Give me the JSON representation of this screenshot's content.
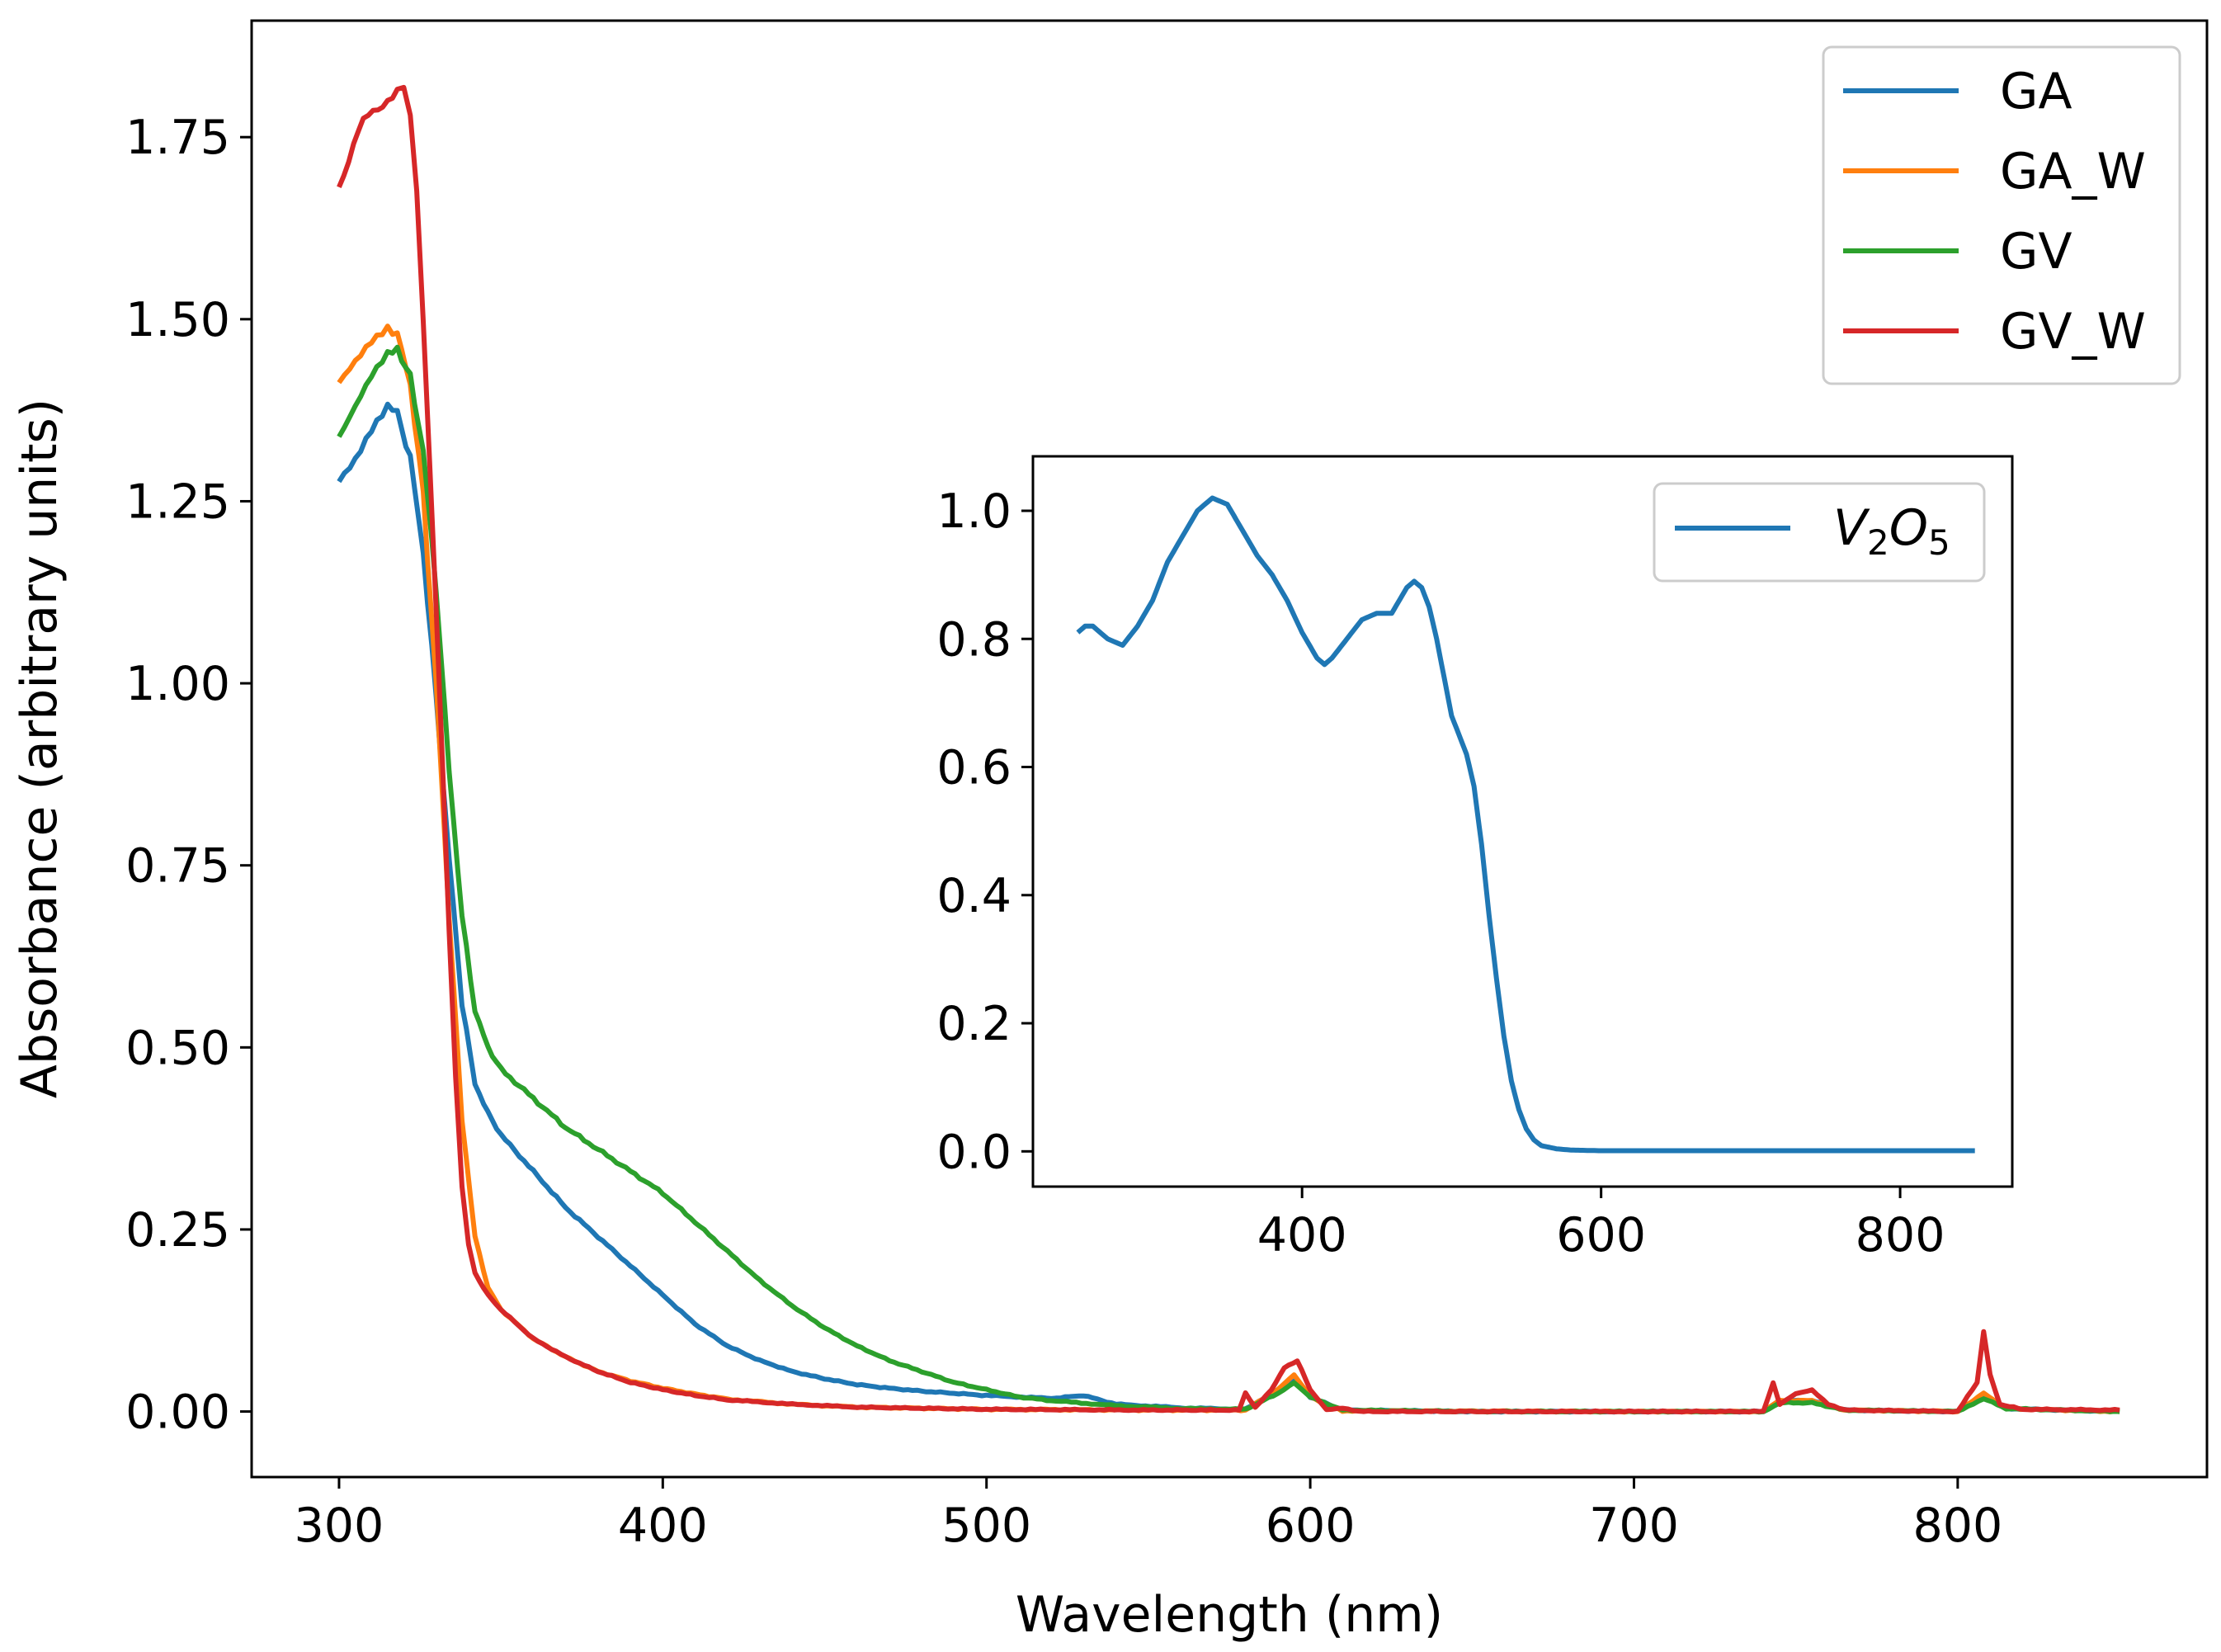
{
  "chart_data": [
    {
      "type": "line",
      "xlabel": "Wavelength (nm)",
      "ylabel": "Absorbance (arbitrary units)",
      "xlim": [
        273,
        877
      ],
      "ylim": [
        -0.09,
        1.91
      ],
      "xticks": [
        300,
        400,
        500,
        600,
        700,
        800
      ],
      "xtick_labels": [
        "300",
        "400",
        "500",
        "600",
        "700",
        "800"
      ],
      "yticks": [
        0,
        0.25,
        0.5,
        0.75,
        1.0,
        1.25,
        1.5,
        1.75
      ],
      "ytick_labels": [
        "0.00",
        "0.25",
        "0.50",
        "0.75",
        "1.00",
        "1.25",
        "1.50",
        "1.75"
      ],
      "legend_position": "top-right",
      "series": [
        {
          "name": "GA",
          "color": "#1f77b4",
          "points": [
            [
              300,
              1.28
            ],
            [
              305,
              1.31
            ],
            [
              310,
              1.35
            ],
            [
              315,
              1.38
            ],
            [
              318,
              1.37
            ],
            [
              322,
              1.31
            ],
            [
              326,
              1.18
            ],
            [
              330,
              0.98
            ],
            [
              334,
              0.76
            ],
            [
              338,
              0.56
            ],
            [
              342,
              0.45
            ],
            [
              346,
              0.41
            ],
            [
              350,
              0.38
            ],
            [
              360,
              0.33
            ],
            [
              370,
              0.28
            ],
            [
              380,
              0.24
            ],
            [
              390,
              0.2
            ],
            [
              400,
              0.16
            ],
            [
              410,
              0.12
            ],
            [
              420,
              0.09
            ],
            [
              430,
              0.07
            ],
            [
              440,
              0.055
            ],
            [
              450,
              0.045
            ],
            [
              460,
              0.037
            ],
            [
              470,
              0.032
            ],
            [
              480,
              0.028
            ],
            [
              490,
              0.025
            ],
            [
              500,
              0.022
            ],
            [
              520,
              0.018
            ],
            [
              530,
              0.022
            ],
            [
              540,
              0.01
            ],
            [
              560,
              0.005
            ],
            [
              580,
              0.003
            ],
            [
              590,
              0.03
            ],
            [
              595,
              0.045
            ],
            [
              600,
              0.02
            ],
            [
              610,
              0.002
            ],
            [
              650,
              0.0
            ],
            [
              700,
              0.0
            ],
            [
              740,
              0.0
            ],
            [
              745,
              0.015
            ],
            [
              755,
              0.015
            ],
            [
              765,
              0.002
            ],
            [
              800,
              0.0
            ],
            [
              808,
              0.02
            ],
            [
              815,
              0.004
            ],
            [
              850,
              0.0
            ]
          ]
        },
        {
          "name": "GA_W",
          "color": "#ff7f0e",
          "points": [
            [
              300,
              1.41
            ],
            [
              305,
              1.44
            ],
            [
              310,
              1.47
            ],
            [
              315,
              1.49
            ],
            [
              318,
              1.48
            ],
            [
              322,
              1.41
            ],
            [
              326,
              1.26
            ],
            [
              330,
              1.0
            ],
            [
              334,
              0.68
            ],
            [
              338,
              0.4
            ],
            [
              342,
              0.24
            ],
            [
              346,
              0.17
            ],
            [
              350,
              0.14
            ],
            [
              360,
              0.1
            ],
            [
              370,
              0.075
            ],
            [
              380,
              0.055
            ],
            [
              390,
              0.042
            ],
            [
              400,
              0.032
            ],
            [
              410,
              0.024
            ],
            [
              420,
              0.017
            ],
            [
              440,
              0.01
            ],
            [
              460,
              0.006
            ],
            [
              500,
              0.003
            ],
            [
              550,
              0.002
            ],
            [
              580,
              0.002
            ],
            [
              590,
              0.03
            ],
            [
              595,
              0.05
            ],
            [
              600,
              0.02
            ],
            [
              610,
              0.001
            ],
            [
              700,
              0.0
            ],
            [
              740,
              0.0
            ],
            [
              745,
              0.015
            ],
            [
              755,
              0.015
            ],
            [
              765,
              0.002
            ],
            [
              800,
              0.0
            ],
            [
              808,
              0.025
            ],
            [
              815,
              0.004
            ],
            [
              850,
              0.0
            ]
          ]
        },
        {
          "name": "GV",
          "color": "#2ca02c",
          "points": [
            [
              300,
              1.34
            ],
            [
              305,
              1.38
            ],
            [
              310,
              1.42
            ],
            [
              315,
              1.45
            ],
            [
              318,
              1.46
            ],
            [
              322,
              1.42
            ],
            [
              326,
              1.32
            ],
            [
              330,
              1.13
            ],
            [
              334,
              0.88
            ],
            [
              338,
              0.68
            ],
            [
              342,
              0.55
            ],
            [
              346,
              0.5
            ],
            [
              350,
              0.47
            ],
            [
              360,
              0.43
            ],
            [
              370,
              0.39
            ],
            [
              380,
              0.36
            ],
            [
              390,
              0.33
            ],
            [
              400,
              0.3
            ],
            [
              410,
              0.26
            ],
            [
              420,
              0.22
            ],
            [
              430,
              0.18
            ],
            [
              440,
              0.145
            ],
            [
              450,
              0.115
            ],
            [
              460,
              0.09
            ],
            [
              470,
              0.07
            ],
            [
              480,
              0.055
            ],
            [
              490,
              0.04
            ],
            [
              500,
              0.03
            ],
            [
              510,
              0.02
            ],
            [
              520,
              0.015
            ],
            [
              540,
              0.008
            ],
            [
              560,
              0.004
            ],
            [
              580,
              0.003
            ],
            [
              590,
              0.025
            ],
            [
              595,
              0.04
            ],
            [
              600,
              0.02
            ],
            [
              610,
              0.002
            ],
            [
              650,
              0.0
            ],
            [
              700,
              0.0
            ],
            [
              740,
              0.0
            ],
            [
              745,
              0.012
            ],
            [
              755,
              0.012
            ],
            [
              765,
              0.002
            ],
            [
              800,
              0.0
            ],
            [
              808,
              0.018
            ],
            [
              815,
              0.004
            ],
            [
              850,
              0.0
            ]
          ]
        },
        {
          "name": "GV_W",
          "color": "#d62728",
          "points": [
            [
              300,
              1.68
            ],
            [
              303,
              1.72
            ],
            [
              306,
              1.76
            ],
            [
              309,
              1.78
            ],
            [
              312,
              1.79
            ],
            [
              315,
              1.8
            ],
            [
              318,
              1.81
            ],
            [
              320,
              1.82
            ],
            [
              322,
              1.78
            ],
            [
              324,
              1.68
            ],
            [
              326,
              1.5
            ],
            [
              328,
              1.3
            ],
            [
              330,
              1.1
            ],
            [
              332,
              0.88
            ],
            [
              334,
              0.66
            ],
            [
              336,
              0.46
            ],
            [
              338,
              0.31
            ],
            [
              340,
              0.23
            ],
            [
              342,
              0.19
            ],
            [
              346,
              0.16
            ],
            [
              350,
              0.14
            ],
            [
              360,
              0.1
            ],
            [
              370,
              0.075
            ],
            [
              380,
              0.055
            ],
            [
              390,
              0.04
            ],
            [
              400,
              0.03
            ],
            [
              410,
              0.022
            ],
            [
              420,
              0.016
            ],
            [
              440,
              0.01
            ],
            [
              460,
              0.006
            ],
            [
              500,
              0.003
            ],
            [
              550,
              0.002
            ],
            [
              578,
              0.002
            ],
            [
              580,
              0.025
            ],
            [
              583,
              0.005
            ],
            [
              588,
              0.03
            ],
            [
              592,
              0.06
            ],
            [
              596,
              0.07
            ],
            [
              600,
              0.03
            ],
            [
              605,
              0.003
            ],
            [
              610,
              0.005
            ],
            [
              615,
              0.0
            ],
            [
              700,
              0.0
            ],
            [
              740,
              0.0
            ],
            [
              743,
              0.04
            ],
            [
              745,
              0.01
            ],
            [
              750,
              0.025
            ],
            [
              755,
              0.03
            ],
            [
              760,
              0.01
            ],
            [
              765,
              0.002
            ],
            [
              800,
              0.0
            ],
            [
              806,
              0.04
            ],
            [
              808,
              0.11
            ],
            [
              810,
              0.05
            ],
            [
              813,
              0.01
            ],
            [
              820,
              0.003
            ],
            [
              850,
              0.002
            ]
          ]
        }
      ]
    },
    {
      "type": "line",
      "inset": true,
      "xlabel": "",
      "ylabel": "",
      "xlim": [
        220,
        875
      ],
      "ylim": [
        -0.055,
        1.085
      ],
      "xticks": [
        400,
        600,
        800
      ],
      "xtick_labels": [
        "400",
        "600",
        "800"
      ],
      "yticks": [
        0,
        0.2,
        0.4,
        0.6,
        0.8,
        1.0
      ],
      "ytick_labels": [
        "0.0",
        "0.2",
        "0.4",
        "0.6",
        "0.8",
        "1.0"
      ],
      "legend_position": "top-right",
      "series": [
        {
          "name": "V₂O₅",
          "name_base": "V",
          "name_sub1": "2",
          "name_mid": "O",
          "name_sub2": "5",
          "color": "#1f77b4",
          "points": [
            [
              250,
              0.81
            ],
            [
              255,
              0.82
            ],
            [
              260,
              0.82
            ],
            [
              270,
              0.8
            ],
            [
              280,
              0.79
            ],
            [
              290,
              0.82
            ],
            [
              300,
              0.86
            ],
            [
              310,
              0.92
            ],
            [
              320,
              0.96
            ],
            [
              330,
              1.0
            ],
            [
              340,
              1.02
            ],
            [
              350,
              1.01
            ],
            [
              360,
              0.97
            ],
            [
              370,
              0.93
            ],
            [
              380,
              0.9
            ],
            [
              390,
              0.86
            ],
            [
              400,
              0.81
            ],
            [
              410,
              0.77
            ],
            [
              415,
              0.76
            ],
            [
              420,
              0.77
            ],
            [
              430,
              0.8
            ],
            [
              440,
              0.83
            ],
            [
              450,
              0.84
            ],
            [
              460,
              0.84
            ],
            [
              470,
              0.88
            ],
            [
              475,
              0.89
            ],
            [
              480,
              0.88
            ],
            [
              485,
              0.85
            ],
            [
              490,
              0.8
            ],
            [
              495,
              0.74
            ],
            [
              500,
              0.68
            ],
            [
              505,
              0.65
            ],
            [
              510,
              0.62
            ],
            [
              515,
              0.57
            ],
            [
              520,
              0.48
            ],
            [
              525,
              0.37
            ],
            [
              530,
              0.27
            ],
            [
              535,
              0.18
            ],
            [
              540,
              0.11
            ],
            [
              545,
              0.065
            ],
            [
              550,
              0.035
            ],
            [
              555,
              0.018
            ],
            [
              560,
              0.009
            ],
            [
              570,
              0.004
            ],
            [
              580,
              0.002
            ],
            [
              600,
              0.001
            ],
            [
              700,
              0.001
            ],
            [
              800,
              0.001
            ],
            [
              850,
              0.001
            ]
          ]
        }
      ]
    }
  ]
}
